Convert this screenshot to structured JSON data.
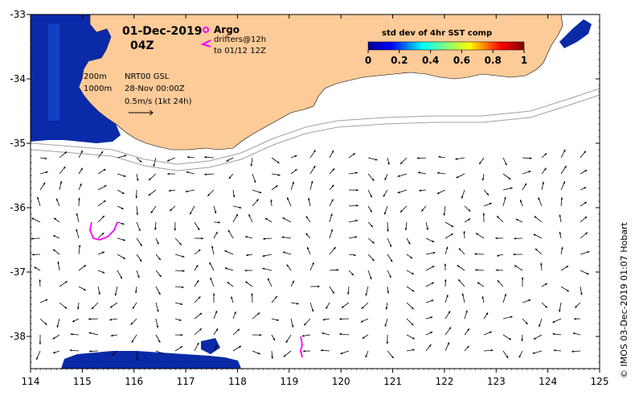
{
  "map": {
    "date": "01-Dec-2019",
    "time": "04Z",
    "legend_argo": "Argo",
    "legend_drifters": "drifters@12h",
    "legend_drifters_to": "to 01/12 12Z",
    "contour_200": "200m",
    "contour_1000": "1000m",
    "source": "NRT00 GSL",
    "source_date": "28-Nov 00:00Z",
    "scale_label": "0.5m/s (1kt 24h)",
    "colorbar_title": "std dev of 4hr SST comp",
    "colorbar_ticks": [
      "0",
      "0.2",
      "0.4",
      "0.6",
      "0.8",
      "1"
    ],
    "colorbar_range": [
      0,
      1
    ],
    "x_ticks": [
      "114",
      "115",
      "116",
      "117",
      "118",
      "119",
      "120",
      "121",
      "122",
      "123",
      "124",
      "125"
    ],
    "y_ticks": [
      "-33",
      "-34",
      "-35",
      "-36",
      "-37",
      "-38"
    ],
    "lon_range": [
      114,
      125
    ],
    "lat_range": [
      -38.5,
      -33
    ],
    "credit": "© IMOS 03-Dec-2019 01:07 Hobart",
    "colors": {
      "land": "#FDCB98",
      "sst_low": "#0a2aa8",
      "argo": "#ff00ff",
      "drifter": "#ff00ff",
      "contour": "#a0a0a0"
    }
  }
}
